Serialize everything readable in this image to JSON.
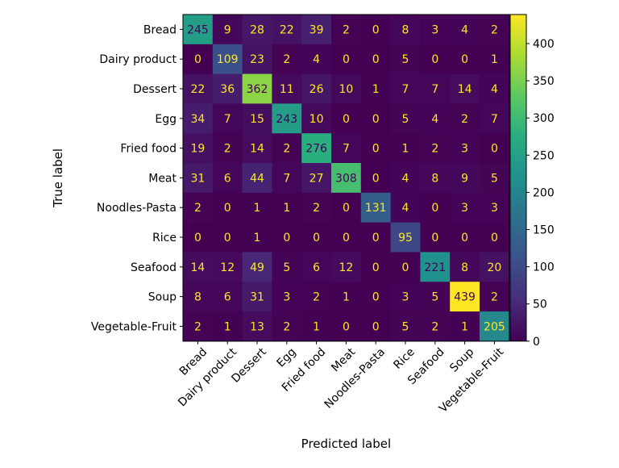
{
  "chart_data": {
    "type": "heatmap",
    "title": "",
    "xlabel": "Predicted label",
    "ylabel": "True label",
    "categories": [
      "Bread",
      "Dairy product",
      "Dessert",
      "Egg",
      "Fried food",
      "Meat",
      "Noodles-Pasta",
      "Rice",
      "Seafood",
      "Soup",
      "Vegetable-Fruit"
    ],
    "matrix": [
      [
        245,
        9,
        28,
        22,
        39,
        2,
        0,
        8,
        3,
        4,
        2
      ],
      [
        0,
        109,
        23,
        2,
        4,
        0,
        0,
        5,
        0,
        0,
        1
      ],
      [
        22,
        36,
        362,
        11,
        26,
        10,
        1,
        7,
        7,
        14,
        4
      ],
      [
        34,
        7,
        15,
        243,
        10,
        0,
        0,
        5,
        4,
        2,
        7
      ],
      [
        19,
        2,
        14,
        2,
        276,
        7,
        0,
        1,
        2,
        3,
        0
      ],
      [
        31,
        6,
        44,
        7,
        27,
        308,
        0,
        4,
        8,
        9,
        5
      ],
      [
        2,
        0,
        1,
        1,
        2,
        0,
        131,
        4,
        0,
        3,
        3
      ],
      [
        0,
        0,
        1,
        0,
        0,
        0,
        0,
        95,
        0,
        0,
        0
      ],
      [
        14,
        12,
        49,
        5,
        6,
        12,
        0,
        0,
        221,
        8,
        20
      ],
      [
        8,
        6,
        31,
        3,
        2,
        1,
        0,
        3,
        5,
        439,
        2
      ],
      [
        2,
        1,
        13,
        2,
        1,
        0,
        0,
        5,
        2,
        1,
        205
      ]
    ],
    "value_range": [
      0,
      439
    ],
    "colormap": "viridis",
    "colorbar_ticks": [
      0,
      50,
      100,
      150,
      200,
      250,
      300,
      350,
      400
    ],
    "x_tick_rotation_deg": 45,
    "grid": false
  }
}
